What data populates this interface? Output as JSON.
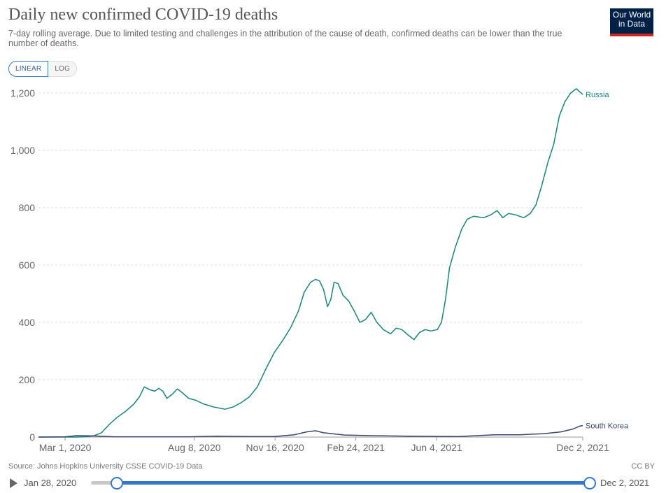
{
  "header": {
    "title": "Daily new confirmed COVID-19 deaths",
    "subtitle": "7-day rolling average. Due to limited testing and challenges in the attribution of the cause of death, confirmed deaths can be lower than the true number of deaths.",
    "logo_line1": "Our World",
    "logo_line2": "in Data"
  },
  "scale_toggle": {
    "linear_label": "LINEAR",
    "log_label": "LOG",
    "selected": "LINEAR"
  },
  "footer": {
    "source": "Source: Johns Hopkins University CSSE COVID-19 Data",
    "license": "CC BY"
  },
  "timeline": {
    "start_label": "Jan 28, 2020",
    "end_label": "Dec 2, 2021"
  },
  "colors": {
    "russia": "#1a8479",
    "south_korea": "#39456b",
    "accent": "#3378cc"
  },
  "chart_data": {
    "type": "line",
    "title": "Daily new confirmed COVID-19 deaths",
    "ylim": [
      0,
      1200
    ],
    "yticks": [
      0,
      200,
      400,
      600,
      800,
      1000,
      1200
    ],
    "ytick_labels": [
      "0",
      "200",
      "400",
      "600",
      "800",
      "1,000",
      "1,200"
    ],
    "xlim": [
      "2020-01-28",
      "2021-12-02"
    ],
    "xticks": [
      "2020-03-01",
      "2020-08-08",
      "2020-11-16",
      "2021-02-24",
      "2021-06-04",
      "2021-12-02"
    ],
    "xtick_labels": [
      "Mar 1, 2020",
      "Aug 8, 2020",
      "Nov 16, 2020",
      "Feb 24, 2021",
      "Jun 4, 2021",
      "Dec 2, 2021"
    ],
    "grid": true,
    "series": [
      {
        "name": "Russia",
        "color": "#1a8479",
        "points": [
          [
            "2020-01-28",
            0
          ],
          [
            "2020-03-15",
            0
          ],
          [
            "2020-03-25",
            1
          ],
          [
            "2020-04-05",
            4
          ],
          [
            "2020-04-15",
            15
          ],
          [
            "2020-04-25",
            45
          ],
          [
            "2020-05-05",
            70
          ],
          [
            "2020-05-15",
            90
          ],
          [
            "2020-05-25",
            115
          ],
          [
            "2020-06-01",
            140
          ],
          [
            "2020-06-07",
            175
          ],
          [
            "2020-06-14",
            165
          ],
          [
            "2020-06-20",
            160
          ],
          [
            "2020-06-25",
            170
          ],
          [
            "2020-06-30",
            160
          ],
          [
            "2020-07-05",
            135
          ],
          [
            "2020-07-12",
            150
          ],
          [
            "2020-07-18",
            168
          ],
          [
            "2020-07-24",
            155
          ],
          [
            "2020-08-01",
            135
          ],
          [
            "2020-08-10",
            128
          ],
          [
            "2020-08-20",
            115
          ],
          [
            "2020-09-01",
            105
          ],
          [
            "2020-09-15",
            97
          ],
          [
            "2020-09-25",
            105
          ],
          [
            "2020-10-05",
            120
          ],
          [
            "2020-10-15",
            140
          ],
          [
            "2020-10-25",
            175
          ],
          [
            "2020-11-05",
            240
          ],
          [
            "2020-11-15",
            295
          ],
          [
            "2020-11-25",
            335
          ],
          [
            "2020-12-05",
            380
          ],
          [
            "2020-12-15",
            440
          ],
          [
            "2020-12-22",
            505
          ],
          [
            "2020-12-30",
            540
          ],
          [
            "2021-01-05",
            550
          ],
          [
            "2021-01-10",
            545
          ],
          [
            "2021-01-15",
            515
          ],
          [
            "2021-01-20",
            455
          ],
          [
            "2021-01-24",
            480
          ],
          [
            "2021-01-28",
            540
          ],
          [
            "2021-02-02",
            535
          ],
          [
            "2021-02-08",
            495
          ],
          [
            "2021-02-15",
            475
          ],
          [
            "2021-02-22",
            440
          ],
          [
            "2021-03-01",
            400
          ],
          [
            "2021-03-08",
            410
          ],
          [
            "2021-03-15",
            435
          ],
          [
            "2021-03-22",
            400
          ],
          [
            "2021-03-30",
            375
          ],
          [
            "2021-04-08",
            360
          ],
          [
            "2021-04-15",
            380
          ],
          [
            "2021-04-22",
            375
          ],
          [
            "2021-04-30",
            355
          ],
          [
            "2021-05-07",
            340
          ],
          [
            "2021-05-14",
            365
          ],
          [
            "2021-05-21",
            375
          ],
          [
            "2021-05-28",
            370
          ],
          [
            "2021-06-05",
            375
          ],
          [
            "2021-06-10",
            400
          ],
          [
            "2021-06-15",
            480
          ],
          [
            "2021-06-20",
            590
          ],
          [
            "2021-06-27",
            660
          ],
          [
            "2021-07-05",
            725
          ],
          [
            "2021-07-12",
            760
          ],
          [
            "2021-07-20",
            770
          ],
          [
            "2021-08-01",
            765
          ],
          [
            "2021-08-10",
            775
          ],
          [
            "2021-08-18",
            790
          ],
          [
            "2021-08-25",
            765
          ],
          [
            "2021-09-01",
            780
          ],
          [
            "2021-09-10",
            775
          ],
          [
            "2021-09-20",
            765
          ],
          [
            "2021-09-28",
            780
          ],
          [
            "2021-10-05",
            810
          ],
          [
            "2021-10-12",
            875
          ],
          [
            "2021-10-20",
            960
          ],
          [
            "2021-10-27",
            1020
          ],
          [
            "2021-11-03",
            1120
          ],
          [
            "2021-11-10",
            1170
          ],
          [
            "2021-11-17",
            1200
          ],
          [
            "2021-11-24",
            1215
          ],
          [
            "2021-12-02",
            1195
          ]
        ]
      },
      {
        "name": "South Korea",
        "color": "#39456b",
        "points": [
          [
            "2020-01-28",
            0
          ],
          [
            "2020-03-01",
            1
          ],
          [
            "2020-03-15",
            5
          ],
          [
            "2020-04-05",
            4
          ],
          [
            "2020-05-01",
            1
          ],
          [
            "2020-06-15",
            1
          ],
          [
            "2020-08-01",
            1
          ],
          [
            "2020-09-05",
            3
          ],
          [
            "2020-10-15",
            2
          ],
          [
            "2020-11-15",
            2
          ],
          [
            "2020-12-10",
            8
          ],
          [
            "2020-12-25",
            18
          ],
          [
            "2021-01-05",
            22
          ],
          [
            "2021-01-15",
            15
          ],
          [
            "2021-02-10",
            7
          ],
          [
            "2021-03-15",
            5
          ],
          [
            "2021-05-01",
            3
          ],
          [
            "2021-07-01",
            2
          ],
          [
            "2021-08-15",
            8
          ],
          [
            "2021-09-15",
            8
          ],
          [
            "2021-10-15",
            12
          ],
          [
            "2021-11-05",
            18
          ],
          [
            "2021-11-20",
            28
          ],
          [
            "2021-11-28",
            38
          ],
          [
            "2021-12-02",
            40
          ]
        ]
      }
    ]
  }
}
